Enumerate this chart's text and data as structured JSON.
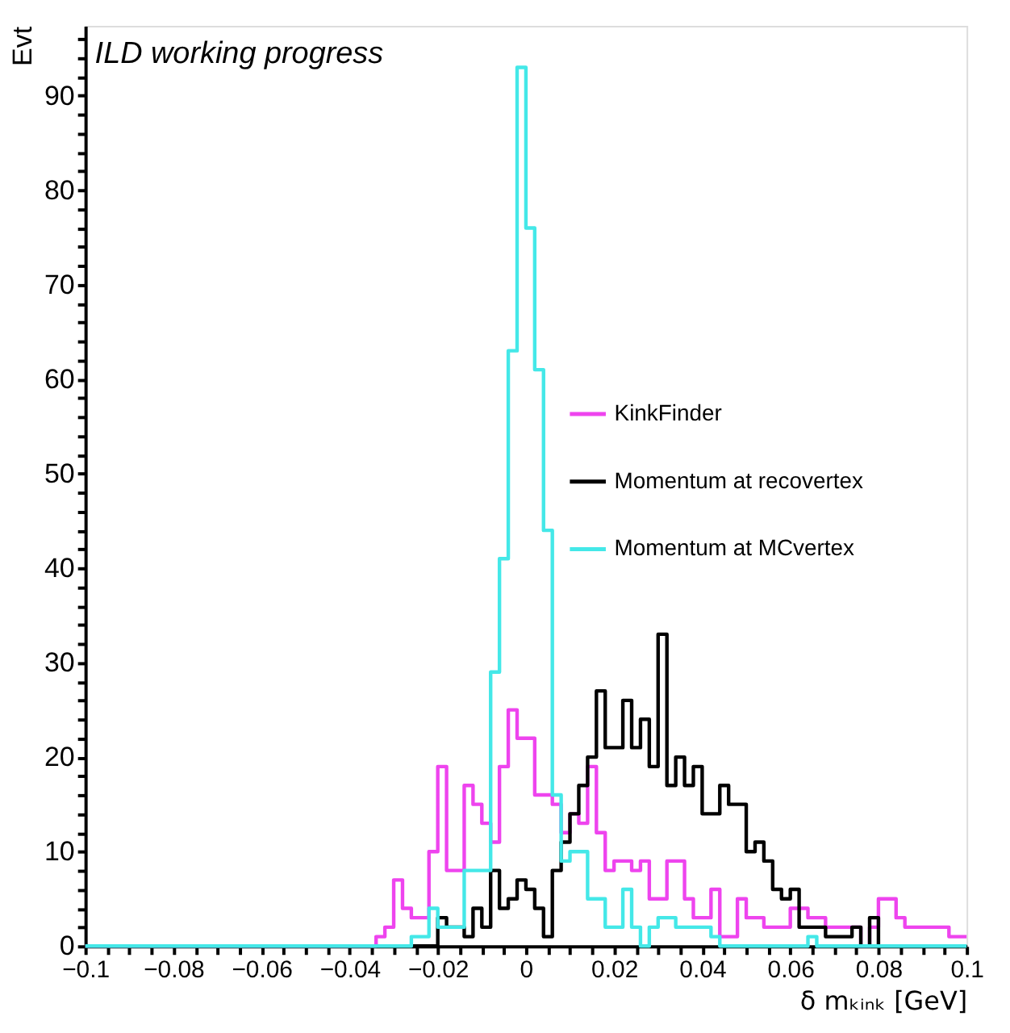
{
  "chart_data": {
    "type": "histogram",
    "xlabel": "δ mₖᵢₙₖ [GeV]",
    "ylabel": "Evt",
    "annotations": [
      "ILD working progress"
    ],
    "bins": [
      -0.1,
      -0.098,
      -0.096,
      -0.094,
      -0.092,
      -0.09,
      -0.088,
      -0.086,
      -0.084,
      -0.082,
      -0.08,
      -0.078,
      -0.076,
      -0.074,
      -0.072,
      -0.07,
      -0.068,
      -0.066,
      -0.064,
      -0.062,
      -0.06,
      -0.058,
      -0.056,
      -0.054,
      -0.052,
      -0.05,
      -0.048,
      -0.046,
      -0.044,
      -0.042,
      -0.04,
      -0.038,
      -0.036,
      -0.034,
      -0.032,
      -0.03,
      -0.028,
      -0.026,
      -0.024,
      -0.022,
      -0.02,
      -0.018,
      -0.016,
      -0.014,
      -0.012,
      -0.01,
      -0.008,
      -0.006,
      -0.004,
      -0.002,
      0,
      0.002,
      0.004,
      0.006,
      0.008,
      0.01,
      0.012,
      0.014,
      0.016,
      0.018,
      0.02,
      0.022,
      0.024,
      0.026,
      0.028,
      0.03,
      0.032,
      0.034,
      0.036,
      0.038,
      0.04,
      0.042,
      0.044,
      0.046,
      0.048,
      0.05,
      0.052,
      0.054,
      0.056,
      0.058,
      0.06,
      0.062,
      0.064,
      0.066,
      0.068,
      0.07,
      0.072,
      0.074,
      0.076,
      0.078,
      0.08,
      0.082,
      0.084,
      0.086,
      0.088,
      0.09,
      0.092,
      0.094,
      0.096,
      0.098,
      0.1
    ],
    "series": [
      {
        "name": "KinkFinder",
        "color": "#ee44ee",
        "values": [
          0,
          0,
          0,
          0,
          0,
          0,
          0,
          0,
          0,
          0,
          0,
          0,
          0,
          0,
          0,
          0,
          0,
          0,
          0,
          0,
          0,
          0,
          0,
          0,
          0,
          0,
          0,
          0,
          0,
          0,
          0,
          0,
          0,
          1,
          2,
          7,
          4,
          3,
          3,
          10,
          19,
          8,
          8,
          17,
          15,
          13,
          11,
          19,
          25,
          22,
          22,
          16,
          16,
          15,
          12,
          14,
          13,
          19,
          12,
          8,
          9,
          9,
          8,
          9,
          5,
          5,
          9,
          9,
          5,
          3,
          3,
          6,
          1,
          1,
          5,
          3,
          3,
          2,
          2,
          2,
          4,
          4,
          3,
          3,
          2,
          2,
          2,
          2,
          0,
          2,
          5,
          5,
          3,
          2,
          2,
          2,
          2,
          2,
          1,
          1
        ]
      },
      {
        "name": "Momentum at recovertex",
        "color": "#000000",
        "values": [
          0,
          0,
          0,
          0,
          0,
          0,
          0,
          0,
          0,
          0,
          0,
          0,
          0,
          0,
          0,
          0,
          0,
          0,
          0,
          0,
          0,
          0,
          0,
          0,
          0,
          0,
          0,
          0,
          0,
          0,
          0,
          0,
          0,
          0,
          0,
          0,
          0,
          0,
          0,
          0,
          3,
          2,
          2,
          1,
          4,
          2,
          8,
          4,
          5,
          7,
          6,
          4,
          1,
          8,
          11,
          14,
          17,
          20,
          27,
          21,
          21,
          26,
          21,
          24,
          19,
          33,
          17,
          20,
          17,
          19,
          14,
          14,
          17,
          15,
          15,
          10,
          11,
          9,
          6,
          5,
          6,
          2,
          2,
          2,
          1,
          1,
          1,
          2,
          0,
          3,
          0,
          0,
          0,
          0,
          0,
          0,
          0,
          0,
          0,
          0
        ]
      },
      {
        "name": "Momentum at MCvertex",
        "color": "#44e8e8",
        "values": [
          0,
          0,
          0,
          0,
          0,
          0,
          0,
          0,
          0,
          0,
          0,
          0,
          0,
          0,
          0,
          0,
          0,
          0,
          0,
          0,
          0,
          0,
          0,
          0,
          0,
          0,
          0,
          0,
          0,
          0,
          0,
          0,
          0,
          0,
          0,
          0,
          0,
          1,
          1,
          4,
          2,
          2,
          2,
          8,
          8,
          8,
          29,
          41,
          63,
          93,
          76,
          61,
          44,
          16,
          9,
          10,
          10,
          5,
          5,
          2,
          2,
          6,
          2,
          0,
          2,
          3,
          3,
          2,
          2,
          2,
          2,
          1,
          0,
          0,
          0,
          0,
          0,
          0,
          0,
          0,
          0,
          0,
          1,
          0,
          0,
          0,
          0,
          0,
          0,
          0,
          0,
          0,
          0,
          0,
          0,
          0,
          0,
          0,
          0,
          0
        ]
      }
    ],
    "xlim": [
      -0.1,
      0.1
    ],
    "ylim": [
      0,
      97.4
    ],
    "xticks": [
      -0.1,
      {
        "value": -0.095,
        "label": null
      },
      {
        "value": -0.09,
        "label": null
      },
      {
        "value": -0.085,
        "label": null
      },
      -0.08,
      {
        "value": -0.075,
        "label": null
      },
      {
        "value": -0.07,
        "label": null
      },
      {
        "value": -0.065,
        "label": null
      },
      -0.06,
      {
        "value": -0.055,
        "label": null
      },
      {
        "value": -0.05,
        "label": null
      },
      {
        "value": -0.045,
        "label": null
      },
      -0.04,
      {
        "value": -0.035,
        "label": null
      },
      {
        "value": -0.03,
        "label": null
      },
      {
        "value": -0.025,
        "label": null
      },
      -0.02,
      {
        "value": -0.015,
        "label": null
      },
      {
        "value": -0.01,
        "label": null
      },
      {
        "value": -0.005,
        "label": null
      },
      0,
      {
        "value": 0.005,
        "label": null
      },
      {
        "value": 0.01,
        "label": null
      },
      {
        "value": 0.015,
        "label": null
      },
      0.02,
      {
        "value": 0.025,
        "label": null
      },
      {
        "value": 0.03,
        "label": null
      },
      {
        "value": 0.035,
        "label": null
      },
      0.04,
      {
        "value": 0.045,
        "label": null
      },
      {
        "value": 0.05,
        "label": null
      },
      {
        "value": 0.055,
        "label": null
      },
      0.06,
      {
        "value": 0.065,
        "label": null
      },
      {
        "value": 0.07,
        "label": null
      },
      {
        "value": 0.075,
        "label": null
      },
      0.08,
      {
        "value": 0.085,
        "label": null
      },
      {
        "value": 0.09,
        "label": null
      },
      {
        "value": 0.095,
        "label": null
      },
      0.1
    ],
    "yticks": [
      0,
      {
        "value": 2,
        "label": null
      },
      {
        "value": 4,
        "label": null
      },
      {
        "value": 6,
        "label": null
      },
      {
        "value": 8,
        "label": null
      },
      10,
      {
        "value": 12,
        "label": null
      },
      {
        "value": 14,
        "label": null
      },
      {
        "value": 16,
        "label": null
      },
      {
        "value": 18,
        "label": null
      },
      20,
      {
        "value": 22,
        "label": null
      },
      {
        "value": 24,
        "label": null
      },
      {
        "value": 26,
        "label": null
      },
      {
        "value": 28,
        "label": null
      },
      30,
      {
        "value": 32,
        "label": null
      },
      {
        "value": 34,
        "label": null
      },
      {
        "value": 36,
        "label": null
      },
      {
        "value": 38,
        "label": null
      },
      40,
      {
        "value": 42,
        "label": null
      },
      {
        "value": 44,
        "label": null
      },
      {
        "value": 46,
        "label": null
      },
      {
        "value": 48,
        "label": null
      },
      50,
      {
        "value": 52,
        "label": null
      },
      {
        "value": 54,
        "label": null
      },
      {
        "value": 56,
        "label": null
      },
      {
        "value": 58,
        "label": null
      },
      60,
      {
        "value": 62,
        "label": null
      },
      {
        "value": 64,
        "label": null
      },
      {
        "value": 66,
        "label": null
      },
      {
        "value": 68,
        "label": null
      },
      70,
      {
        "value": 72,
        "label": null
      },
      {
        "value": 74,
        "label": null
      },
      {
        "value": 76,
        "label": null
      },
      {
        "value": 78,
        "label": null
      },
      80,
      {
        "value": 82,
        "label": null
      },
      {
        "value": 84,
        "label": null
      },
      {
        "value": 86,
        "label": null
      },
      {
        "value": 88,
        "label": null
      },
      90,
      {
        "value": 92,
        "label": null
      },
      {
        "value": 94,
        "label": null
      },
      {
        "value": 96,
        "label": null
      }
    ],
    "legend": "right",
    "grid": false
  }
}
